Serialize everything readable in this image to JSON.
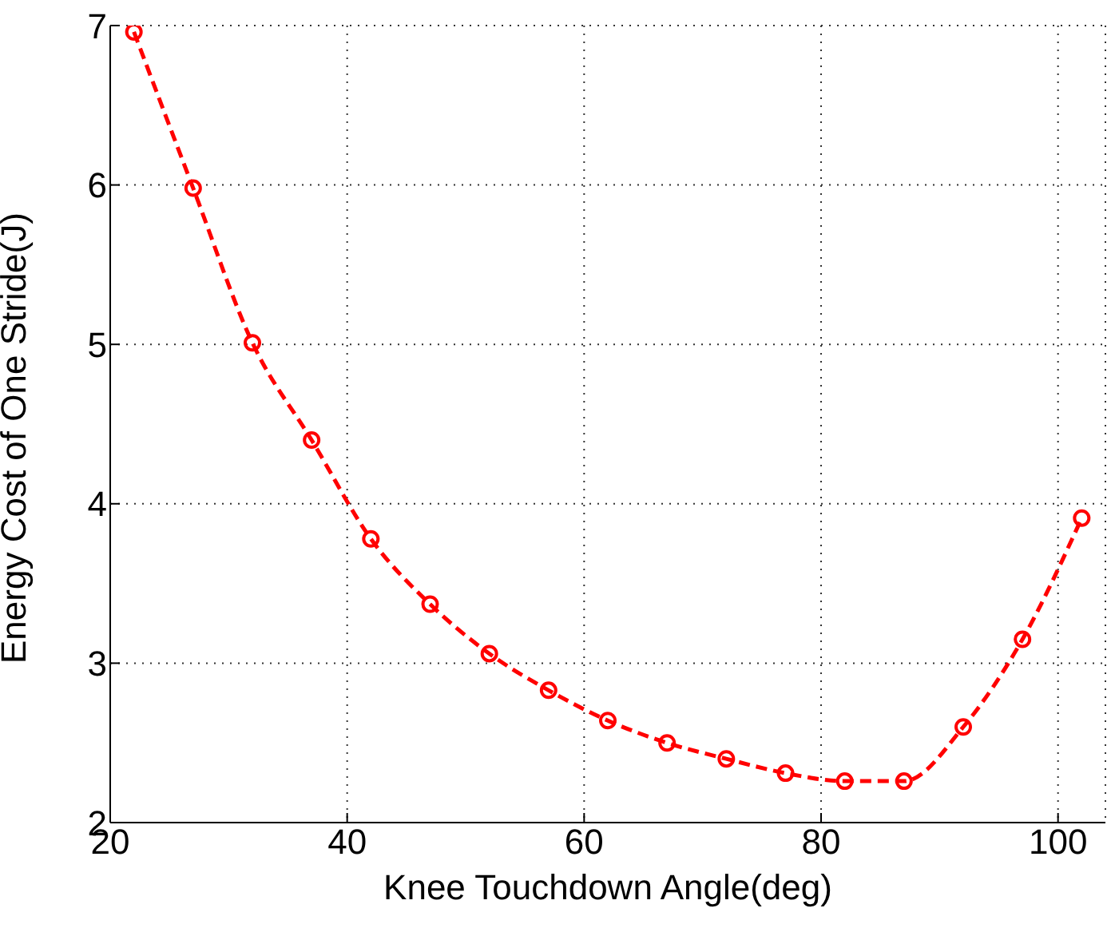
{
  "chart_data": {
    "type": "line",
    "xlabel": "Knee Touchdown Angle(deg)",
    "ylabel": "Energy Cost of One Stride(J)",
    "x": [
      22,
      27,
      32,
      37,
      42,
      47,
      52,
      57,
      62,
      67,
      72,
      77,
      82,
      87,
      92,
      97,
      102
    ],
    "series": [
      {
        "color": "#ff0000",
        "values": [
          6.96,
          5.98,
          5.01,
          4.4,
          3.78,
          3.37,
          3.06,
          2.83,
          2.64,
          2.5,
          2.4,
          2.31,
          2.26,
          2.26,
          2.6,
          3.15,
          3.91
        ]
      }
    ],
    "xlim": [
      20,
      104
    ],
    "xticks": [
      20,
      40,
      60,
      80,
      100
    ],
    "ylim": [
      2,
      7
    ],
    "yticks": [
      2,
      3,
      4,
      5,
      6,
      7
    ],
    "grid": true,
    "marker": "circle",
    "line_style": "dashed",
    "legend": false
  }
}
